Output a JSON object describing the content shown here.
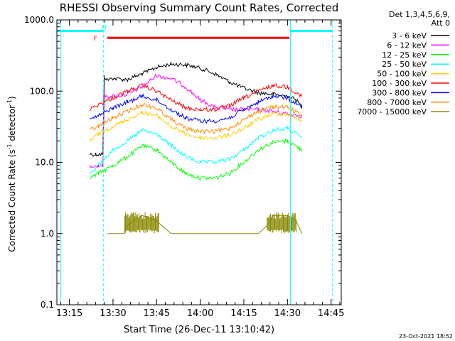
{
  "chart_data": {
    "type": "line",
    "title": "RHESSI Observing Summary Count Rates, Corrected",
    "xlabel": "Start Time (26-Dec-11 13:10:42)",
    "ylabel_main": "Corrected Count Rate (s",
    "ylabel_sup1": "-1",
    "ylabel_mid": " detector",
    "ylabel_sup2": "-1",
    "ylabel_end": ")",
    "yscale": "log",
    "ylim": [
      0.1,
      1000
    ],
    "xlim": [
      "13:10:42",
      "14:48:30"
    ],
    "x_ticks": [
      "13:15",
      "13:30",
      "13:45",
      "14:00",
      "14:15",
      "14:30",
      "14:45"
    ],
    "y_ticks": [
      "0.1",
      "1.0",
      "10.0",
      "100.0",
      "1000.0"
    ],
    "legend_header": [
      "Det 1,3,4,5,6,9,",
      "Att 0"
    ],
    "legend_placement": "top-right outside",
    "series": [
      {
        "name": "3 - 6 keV",
        "color": "#000000",
        "x": [
          "13:22:00",
          "13:24:00",
          "13:25:00",
          "13:26:30",
          "13:27:00",
          "13:28:00",
          "13:30:00",
          "13:35:00",
          "13:40:00",
          "13:45:00",
          "13:50:00",
          "13:55:00",
          "14:00:00",
          "14:05:00",
          "14:10:00",
          "14:15:00",
          "14:20:00",
          "14:25:00",
          "14:30:00",
          "14:33:00",
          "14:35:00"
        ],
        "values": [
          13,
          13,
          13,
          13,
          160,
          145,
          150,
          145,
          175,
          215,
          240,
          235,
          210,
          175,
          135,
          110,
          95,
          90,
          85,
          75,
          60
        ]
      },
      {
        "name": "6 - 12 keV",
        "color": "#ff00ff",
        "x": [
          "13:22:00",
          "13:25:00",
          "13:26:30",
          "13:27:00",
          "13:30:00",
          "13:35:00",
          "13:40:00",
          "13:45:00",
          "13:50:00",
          "13:55:00",
          "14:00:00",
          "14:05:00",
          "14:10:00",
          "14:15:00",
          "14:20:00",
          "14:25:00",
          "14:30:00",
          "14:35:00"
        ],
        "values": [
          9,
          9,
          9,
          85,
          85,
          90,
          115,
          165,
          150,
          115,
          75,
          60,
          55,
          55,
          55,
          52,
          48,
          45
        ]
      },
      {
        "name": "12 - 25 keV",
        "color": "#00ff00",
        "x": [
          "13:22:00",
          "13:25:00",
          "13:30:00",
          "13:35:00",
          "13:40:00",
          "13:45:00",
          "13:50:00",
          "13:55:00",
          "14:00:00",
          "14:05:00",
          "14:10:00",
          "14:15:00",
          "14:20:00",
          "14:25:00",
          "14:30:00",
          "14:35:00"
        ],
        "values": [
          6,
          7,
          9,
          12,
          17,
          15,
          10,
          7,
          6,
          6,
          7,
          10,
          15,
          19,
          20,
          15
        ]
      },
      {
        "name": "25 - 50 keV",
        "color": "#00ffff",
        "x": [
          "13:22:00",
          "13:25:00",
          "13:30:00",
          "13:35:00",
          "13:40:00",
          "13:45:00",
          "13:50:00",
          "13:55:00",
          "14:00:00",
          "14:05:00",
          "14:10:00",
          "14:15:00",
          "14:20:00",
          "14:25:00",
          "14:30:00",
          "14:35:00"
        ],
        "values": [
          7,
          9,
          15,
          20,
          28,
          25,
          17,
          12,
          10,
          10,
          11,
          15,
          22,
          28,
          30,
          22
        ]
      },
      {
        "name": "50 - 100 keV",
        "color": "#ffcc00",
        "x": [
          "13:22:00",
          "13:25:00",
          "13:30:00",
          "13:35:00",
          "13:40:00",
          "13:45:00",
          "13:50:00",
          "13:55:00",
          "14:00:00",
          "14:05:00",
          "14:10:00",
          "14:15:00",
          "14:20:00",
          "14:25:00",
          "14:30:00",
          "14:35:00"
        ],
        "values": [
          20,
          25,
          32,
          40,
          50,
          45,
          32,
          25,
          22,
          22,
          24,
          30,
          40,
          48,
          48,
          38
        ]
      },
      {
        "name": "100 - 300 keV",
        "color": "#ff0000",
        "x": [
          "13:22:00",
          "13:25:00",
          "13:30:00",
          "13:35:00",
          "13:40:00",
          "13:45:00",
          "13:50:00",
          "13:55:00",
          "14:00:00",
          "14:05:00",
          "14:10:00",
          "14:15:00",
          "14:20:00",
          "14:25:00",
          "14:30:00",
          "14:35:00"
        ],
        "values": [
          55,
          65,
          80,
          100,
          120,
          100,
          75,
          58,
          55,
          55,
          62,
          80,
          100,
          120,
          115,
          85
        ]
      },
      {
        "name": "300 - 800 keV",
        "color": "#0000ff",
        "x": [
          "13:22:00",
          "13:25:00",
          "13:30:00",
          "13:35:00",
          "13:40:00",
          "13:45:00",
          "13:50:00",
          "13:55:00",
          "14:00:00",
          "14:05:00",
          "14:10:00",
          "14:15:00",
          "14:20:00",
          "14:25:00",
          "14:30:00",
          "14:35:00"
        ],
        "values": [
          40,
          45,
          58,
          70,
          85,
          75,
          55,
          42,
          38,
          38,
          42,
          55,
          70,
          85,
          80,
          60
        ]
      },
      {
        "name": "800 - 7000 keV",
        "color": "#ff8800",
        "x": [
          "13:22:00",
          "13:25:00",
          "13:30:00",
          "13:35:00",
          "13:40:00",
          "13:45:00",
          "13:50:00",
          "13:55:00",
          "14:00:00",
          "14:05:00",
          "14:10:00",
          "14:15:00",
          "14:20:00",
          "14:25:00",
          "14:30:00",
          "14:35:00"
        ],
        "values": [
          28,
          32,
          42,
          52,
          65,
          58,
          40,
          30,
          27,
          27,
          30,
          40,
          52,
          60,
          60,
          45
        ]
      },
      {
        "name": "7000 - 15000 keV",
        "color": "#888800",
        "x": [
          "13:28:00",
          "13:34:00",
          "13:35:00",
          "13:40:00",
          "13:45:00",
          "13:50:00",
          "14:00:00",
          "14:20:00",
          "14:23:00",
          "14:25:00",
          "14:30:00",
          "14:33:00",
          "14:35:00"
        ],
        "values": [
          1,
          1,
          1.3,
          1.8,
          1.5,
          1,
          1,
          1,
          1.3,
          1.8,
          1.8,
          1.5,
          1
        ]
      }
    ],
    "annotations": {
      "flag_bars": [
        {
          "color": "#00ffff",
          "from": "13:10:42",
          "to": "13:26:40",
          "value": 700
        },
        {
          "color": "#00ffff",
          "from": "14:31:00",
          "to": "14:45:30",
          "value": 700
        },
        {
          "color": "#ff0000",
          "from": "13:28:00",
          "to": "14:30:40",
          "value": 560
        }
      ],
      "flag_labels": [
        {
          "text": "N",
          "color": "#00ffff",
          "at": "13:28:00",
          "value": 800
        },
        {
          "text": "F",
          "color": "#ff0000",
          "at": "13:25:00",
          "value": 560
        }
      ],
      "vlines": [
        {
          "at": "13:12:00",
          "color": "#00ffff",
          "style": "solid"
        },
        {
          "at": "13:26:40",
          "color": "#00ffff",
          "style": "dashed"
        },
        {
          "at": "14:31:00",
          "color": "#00ffff",
          "style": "solid"
        },
        {
          "at": "14:45:30",
          "color": "#00ffff",
          "style": "dashed"
        }
      ]
    },
    "grid": false
  },
  "footer_date": "23-Oct-2021 18:52"
}
